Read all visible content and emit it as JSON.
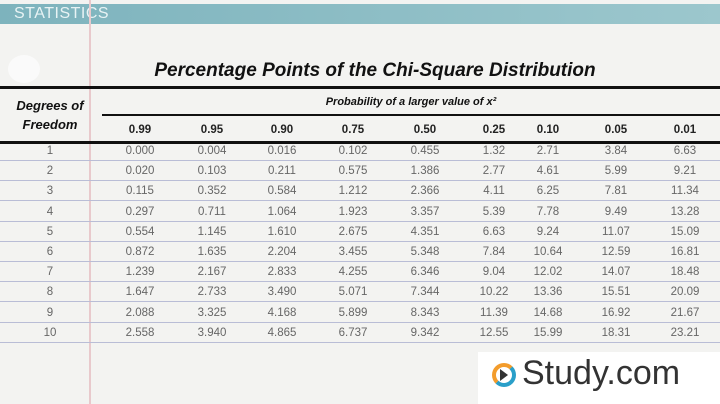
{
  "banner": {
    "label": "STATISTICS",
    "color": "#7db3bd"
  },
  "title": "Percentage Points of the Chi-Square Distribution",
  "table": {
    "row_header": "Degrees of Freedom",
    "column_group_header": "Probability of a larger value of x²",
    "columns": [
      "0.99",
      "0.95",
      "0.90",
      "0.75",
      "0.50",
      "0.25",
      "0.10",
      "0.05",
      "0.01"
    ],
    "rows": [
      {
        "df": "1",
        "values": [
          "0.000",
          "0.004",
          "0.016",
          "0.102",
          "0.455",
          "1.32",
          "2.71",
          "3.84",
          "6.63"
        ]
      },
      {
        "df": "2",
        "values": [
          "0.020",
          "0.103",
          "0.211",
          "0.575",
          "1.386",
          "2.77",
          "4.61",
          "5.99",
          "9.21"
        ]
      },
      {
        "df": "3",
        "values": [
          "0.115",
          "0.352",
          "0.584",
          "1.212",
          "2.366",
          "4.11",
          "6.25",
          "7.81",
          "11.34"
        ]
      },
      {
        "df": "4",
        "values": [
          "0.297",
          "0.711",
          "1.064",
          "1.923",
          "3.357",
          "5.39",
          "7.78",
          "9.49",
          "13.28"
        ]
      },
      {
        "df": "5",
        "values": [
          "0.554",
          "1.145",
          "1.610",
          "2.675",
          "4.351",
          "6.63",
          "9.24",
          "11.07",
          "15.09"
        ]
      },
      {
        "df": "6",
        "values": [
          "0.872",
          "1.635",
          "2.204",
          "3.455",
          "5.348",
          "7.84",
          "10.64",
          "12.59",
          "16.81"
        ]
      },
      {
        "df": "7",
        "values": [
          "1.239",
          "2.167",
          "2.833",
          "4.255",
          "6.346",
          "9.04",
          "12.02",
          "14.07",
          "18.48"
        ]
      },
      {
        "df": "8",
        "values": [
          "1.647",
          "2.733",
          "3.490",
          "5.071",
          "7.344",
          "10.22",
          "13.36",
          "15.51",
          "20.09"
        ]
      },
      {
        "df": "9",
        "values": [
          "2.088",
          "3.325",
          "4.168",
          "5.899",
          "8.343",
          "11.39",
          "14.68",
          "16.92",
          "21.67"
        ]
      },
      {
        "df": "10",
        "values": [
          "2.558",
          "3.940",
          "4.865",
          "6.737",
          "9.342",
          "12.55",
          "15.99",
          "18.31",
          "23.21"
        ]
      }
    ]
  },
  "logo": {
    "text": "Study.com"
  }
}
